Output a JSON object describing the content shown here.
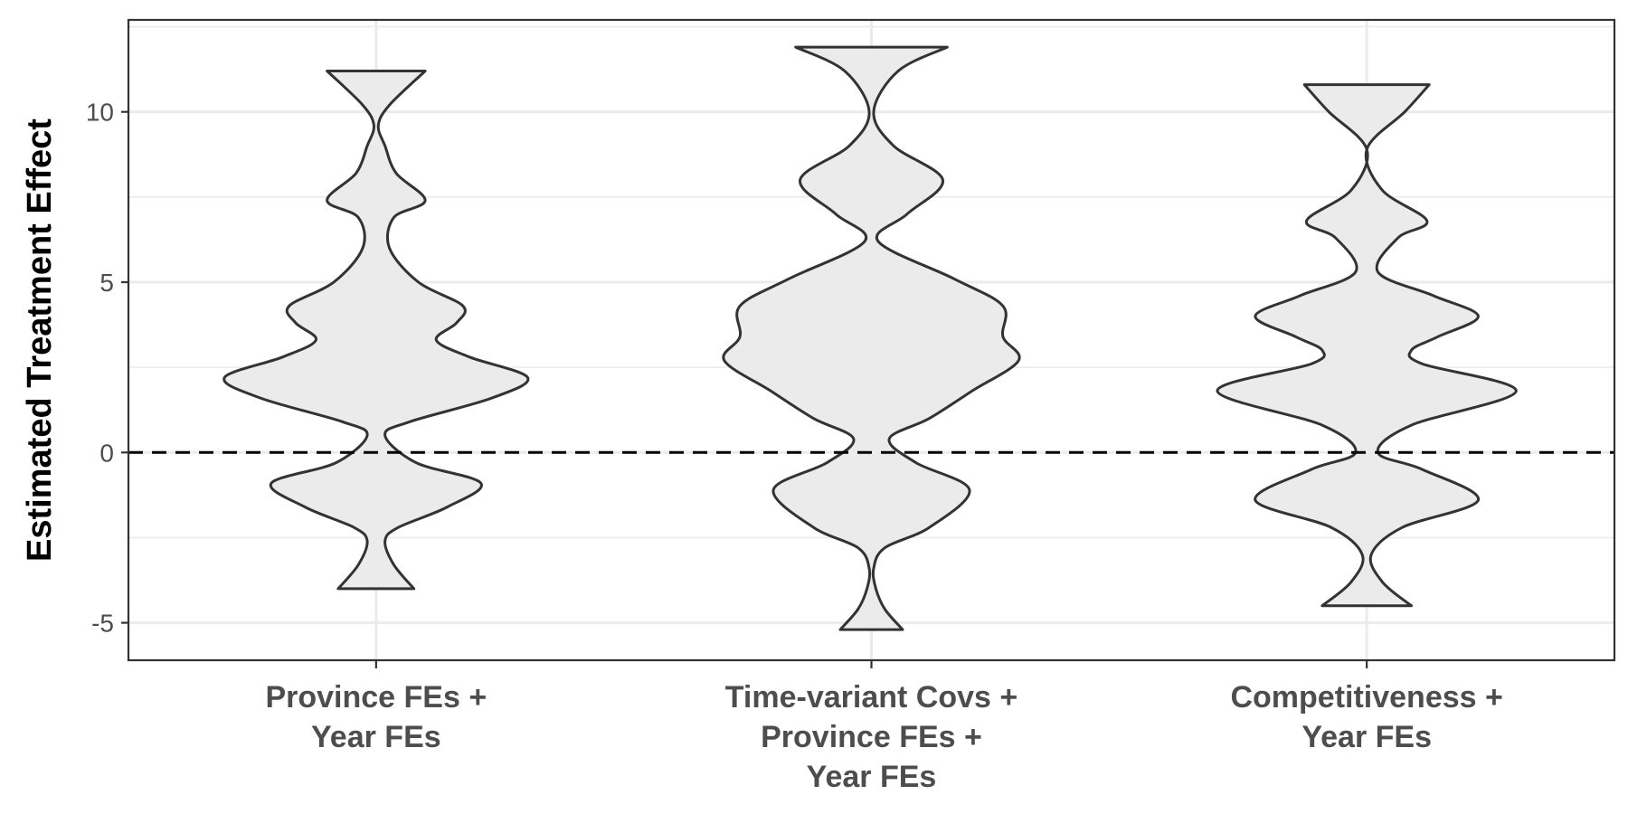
{
  "chart_data": {
    "type": "violin",
    "title": "",
    "xlabel": "",
    "ylabel": "Estimated Treatment Effect",
    "ylim": [
      -6.1,
      12.7
    ],
    "yticks": [
      -5,
      0,
      5,
      10
    ],
    "ytick_labels": [
      "-5",
      "0",
      "5",
      "10"
    ],
    "reference_line": {
      "y": 0,
      "style": "dashed"
    },
    "grid": true,
    "fill_color": "#ebebeb",
    "outline_color": "#333333",
    "categories": [
      {
        "label": [
          "Province FEs +",
          "Year FEs"
        ]
      },
      {
        "label": [
          "Time-variant Covs +",
          "Province FEs +",
          "Year FEs"
        ]
      },
      {
        "label": [
          "Competitiveness +",
          "Year FEs"
        ]
      }
    ],
    "violins": [
      {
        "y_min": -4.0,
        "y_max": 11.2,
        "profile": [
          [
            -4.0,
            0.17
          ],
          [
            -3.3,
            0.08
          ],
          [
            -2.6,
            0.04
          ],
          [
            -2.2,
            0.1
          ],
          [
            -1.6,
            0.32
          ],
          [
            -0.9,
            0.47
          ],
          [
            -0.3,
            0.18
          ],
          [
            0.5,
            0.04
          ],
          [
            0.9,
            0.15
          ],
          [
            1.6,
            0.52
          ],
          [
            2.2,
            0.68
          ],
          [
            2.8,
            0.42
          ],
          [
            3.3,
            0.27
          ],
          [
            3.8,
            0.36
          ],
          [
            4.3,
            0.39
          ],
          [
            5.0,
            0.19
          ],
          [
            6.0,
            0.06
          ],
          [
            6.9,
            0.08
          ],
          [
            7.4,
            0.22
          ],
          [
            8.2,
            0.09
          ],
          [
            9.0,
            0.04
          ],
          [
            9.6,
            0.01
          ],
          [
            10.2,
            0.06
          ],
          [
            11.2,
            0.22
          ]
        ]
      },
      {
        "y_min": -5.2,
        "y_max": 11.9,
        "profile": [
          [
            -5.2,
            0.14
          ],
          [
            -4.6,
            0.06
          ],
          [
            -4.0,
            0.02
          ],
          [
            -3.4,
            0.01
          ],
          [
            -2.8,
            0.06
          ],
          [
            -2.2,
            0.26
          ],
          [
            -1.1,
            0.44
          ],
          [
            -0.3,
            0.2
          ],
          [
            0.4,
            0.08
          ],
          [
            1.0,
            0.26
          ],
          [
            1.8,
            0.45
          ],
          [
            2.7,
            0.66
          ],
          [
            3.4,
            0.59
          ],
          [
            4.3,
            0.59
          ],
          [
            5.1,
            0.37
          ],
          [
            6.2,
            0.03
          ],
          [
            7.0,
            0.16
          ],
          [
            8.0,
            0.32
          ],
          [
            9.0,
            0.1
          ],
          [
            10.0,
            0.01
          ],
          [
            11.2,
            0.12
          ],
          [
            11.9,
            0.34
          ]
        ]
      },
      {
        "y_min": -4.5,
        "y_max": 10.8,
        "profile": [
          [
            -4.5,
            0.2
          ],
          [
            -3.8,
            0.07
          ],
          [
            -3.0,
            0.02
          ],
          [
            -2.2,
            0.16
          ],
          [
            -1.4,
            0.5
          ],
          [
            -0.5,
            0.25
          ],
          [
            0.0,
            0.05
          ],
          [
            0.8,
            0.2
          ],
          [
            1.8,
            0.67
          ],
          [
            2.6,
            0.25
          ],
          [
            3.0,
            0.2
          ],
          [
            3.4,
            0.32
          ],
          [
            4.0,
            0.5
          ],
          [
            4.6,
            0.3
          ],
          [
            5.3,
            0.05
          ],
          [
            6.3,
            0.14
          ],
          [
            6.8,
            0.27
          ],
          [
            7.7,
            0.07
          ],
          [
            8.9,
            0.0
          ],
          [
            10.0,
            0.17
          ],
          [
            10.8,
            0.28
          ]
        ]
      }
    ]
  }
}
